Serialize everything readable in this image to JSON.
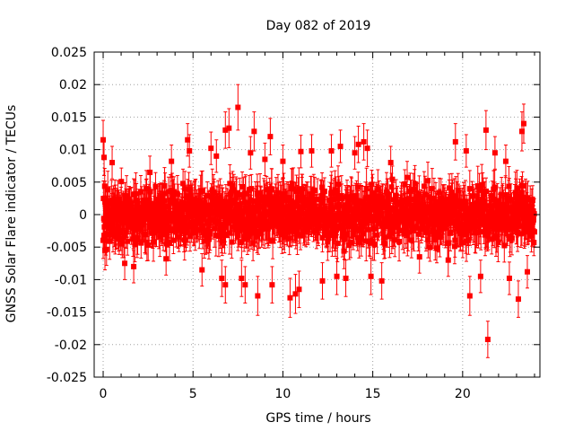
{
  "colors": {
    "series": "#ff0000",
    "grid": "#a0a0a0",
    "axis": "#000000",
    "background": "#ffffff"
  },
  "chart_data": {
    "type": "scatter",
    "title": "Day 082 of 2019",
    "xlabel": "GPS time / hours",
    "ylabel": "GNSS Solar Flare indicator / TECUs",
    "xlim": [
      -0.5,
      24.3
    ],
    "ylim": [
      -0.025,
      0.025
    ],
    "grid": true,
    "x_ticks": [
      0,
      5,
      10,
      15,
      20
    ],
    "x_tick_labels": [
      "0",
      "5",
      "10",
      "15",
      "20"
    ],
    "y_ticks": [
      0.025,
      0.02,
      0.015,
      0.01,
      0.005,
      0,
      -0.005,
      -0.01,
      -0.015,
      -0.02,
      -0.025
    ],
    "y_tick_labels": [
      "0.025",
      "0.02",
      "0.015",
      "0.01",
      "0.005",
      "0",
      "-0.005",
      "-0.01",
      "-0.015",
      "-0.02",
      "-0.025"
    ],
    "series": [
      {
        "name": "GNSS Solar Flare indicator",
        "marker": "square",
        "color": "#ff0000",
        "error_bars": true,
        "typical_error": 0.0025,
        "note": "dense 30-second samples over 0-24 h scattered mostly within ±0.007 TECU; notable points listed",
        "points": [
          {
            "x": 0.0,
            "y": 0.0115,
            "err": 0.003
          },
          {
            "x": 0.05,
            "y": 0.0088,
            "err": 0.0028
          },
          {
            "x": 0.1,
            "y": -0.0055,
            "err": 0.003
          },
          {
            "x": 0.5,
            "y": 0.008,
            "err": 0.0025
          },
          {
            "x": 1.2,
            "y": -0.0075,
            "err": 0.0025
          },
          {
            "x": 1.7,
            "y": -0.008,
            "err": 0.0025
          },
          {
            "x": 2.6,
            "y": 0.0065,
            "err": 0.0025
          },
          {
            "x": 3.5,
            "y": -0.0068,
            "err": 0.0025
          },
          {
            "x": 3.8,
            "y": 0.0082,
            "err": 0.0025
          },
          {
            "x": 4.7,
            "y": 0.0115,
            "err": 0.0025
          },
          {
            "x": 4.8,
            "y": 0.0098,
            "err": 0.0025
          },
          {
            "x": 5.5,
            "y": -0.0085,
            "err": 0.0025
          },
          {
            "x": 6.0,
            "y": 0.0102,
            "err": 0.0025
          },
          {
            "x": 6.3,
            "y": 0.009,
            "err": 0.0025
          },
          {
            "x": 6.6,
            "y": -0.0098,
            "err": 0.0028
          },
          {
            "x": 6.8,
            "y": 0.013,
            "err": 0.0028
          },
          {
            "x": 6.8,
            "y": -0.0108,
            "err": 0.0028
          },
          {
            "x": 7.0,
            "y": 0.0133,
            "err": 0.003
          },
          {
            "x": 7.5,
            "y": 0.0165,
            "err": 0.0035
          },
          {
            "x": 7.7,
            "y": -0.0098,
            "err": 0.0028
          },
          {
            "x": 7.9,
            "y": -0.0108,
            "err": 0.0028
          },
          {
            "x": 8.2,
            "y": 0.0095,
            "err": 0.0025
          },
          {
            "x": 8.4,
            "y": 0.0128,
            "err": 0.003
          },
          {
            "x": 8.6,
            "y": -0.0125,
            "err": 0.003
          },
          {
            "x": 9.0,
            "y": 0.0085,
            "err": 0.0025
          },
          {
            "x": 9.3,
            "y": 0.012,
            "err": 0.0028
          },
          {
            "x": 9.4,
            "y": -0.0108,
            "err": 0.0028
          },
          {
            "x": 10.0,
            "y": 0.0082,
            "err": 0.0025
          },
          {
            "x": 10.4,
            "y": -0.0128,
            "err": 0.003
          },
          {
            "x": 10.7,
            "y": -0.0122,
            "err": 0.003
          },
          {
            "x": 10.9,
            "y": -0.0115,
            "err": 0.0028
          },
          {
            "x": 11.0,
            "y": 0.0097,
            "err": 0.0025
          },
          {
            "x": 11.6,
            "y": 0.0098,
            "err": 0.0025
          },
          {
            "x": 12.2,
            "y": -0.0102,
            "err": 0.0028
          },
          {
            "x": 12.7,
            "y": 0.0098,
            "err": 0.0025
          },
          {
            "x": 13.0,
            "y": -0.0095,
            "err": 0.0028
          },
          {
            "x": 13.2,
            "y": 0.0105,
            "err": 0.0025
          },
          {
            "x": 13.5,
            "y": -0.0098,
            "err": 0.0028
          },
          {
            "x": 14.0,
            "y": 0.0095,
            "err": 0.0025
          },
          {
            "x": 14.2,
            "y": 0.0108,
            "err": 0.0028
          },
          {
            "x": 14.5,
            "y": 0.0112,
            "err": 0.0028
          },
          {
            "x": 14.7,
            "y": 0.0102,
            "err": 0.0028
          },
          {
            "x": 14.9,
            "y": -0.0095,
            "err": 0.0028
          },
          {
            "x": 15.5,
            "y": -0.0102,
            "err": 0.0028
          },
          {
            "x": 16.0,
            "y": 0.008,
            "err": 0.0025
          },
          {
            "x": 17.6,
            "y": -0.0065,
            "err": 0.0025
          },
          {
            "x": 19.2,
            "y": -0.007,
            "err": 0.0025
          },
          {
            "x": 19.6,
            "y": 0.0112,
            "err": 0.0028
          },
          {
            "x": 20.2,
            "y": 0.0098,
            "err": 0.0025
          },
          {
            "x": 20.4,
            "y": -0.0125,
            "err": 0.003
          },
          {
            "x": 21.0,
            "y": -0.0095,
            "err": 0.0025
          },
          {
            "x": 21.3,
            "y": 0.013,
            "err": 0.003
          },
          {
            "x": 21.4,
            "y": -0.0192,
            "err": 0.0028
          },
          {
            "x": 21.8,
            "y": 0.0095,
            "err": 0.0025
          },
          {
            "x": 22.4,
            "y": 0.0082,
            "err": 0.0025
          },
          {
            "x": 22.6,
            "y": -0.0098,
            "err": 0.0025
          },
          {
            "x": 23.1,
            "y": -0.013,
            "err": 0.0028
          },
          {
            "x": 23.3,
            "y": 0.0128,
            "err": 0.003
          },
          {
            "x": 23.4,
            "y": 0.014,
            "err": 0.003
          },
          {
            "x": 23.6,
            "y": -0.0088,
            "err": 0.0025
          }
        ]
      }
    ]
  }
}
